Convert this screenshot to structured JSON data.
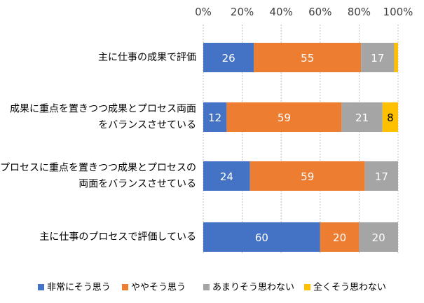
{
  "chart_data": {
    "type": "bar",
    "orientation": "horizontal",
    "stacked": true,
    "title": "",
    "xlabel": "",
    "ylabel": "",
    "xlim": [
      0,
      100
    ],
    "x_ticks": [
      "0%",
      "20%",
      "40%",
      "60%",
      "80%",
      "100%"
    ],
    "x_ticks_position": "top",
    "grid": "vertical-dotted",
    "legend_position": "bottom",
    "categories": [
      [
        "主に仕事の成果で評価"
      ],
      [
        "成果に重点を置きつつ成果とプロセス両面",
        "をバランスさせている"
      ],
      [
        "プロセスに重点を置きつつ成果とプロセスの",
        "両面をバランスさせている"
      ],
      [
        "主に仕事のプロセスで評価している"
      ]
    ],
    "series": [
      {
        "name": "非常にそう思う",
        "color": "#4472C4",
        "values": [
          26,
          12,
          24,
          60
        ]
      },
      {
        "name": "ややそう思う",
        "color": "#ED7D31",
        "values": [
          55,
          59,
          59,
          20
        ]
      },
      {
        "name": "あまりそう思わない",
        "color": "#A5A5A5",
        "values": [
          17,
          21,
          17,
          20
        ]
      },
      {
        "name": "全くそう思わない",
        "color": "#FFC000",
        "values": [
          2,
          8,
          0,
          0
        ]
      }
    ],
    "data_labels": [
      [
        "26",
        "55",
        "17",
        ""
      ],
      [
        "12",
        "59",
        "21",
        "8"
      ],
      [
        "24",
        "59",
        "17",
        ""
      ],
      [
        "60",
        "20",
        "20",
        ""
      ]
    ]
  }
}
